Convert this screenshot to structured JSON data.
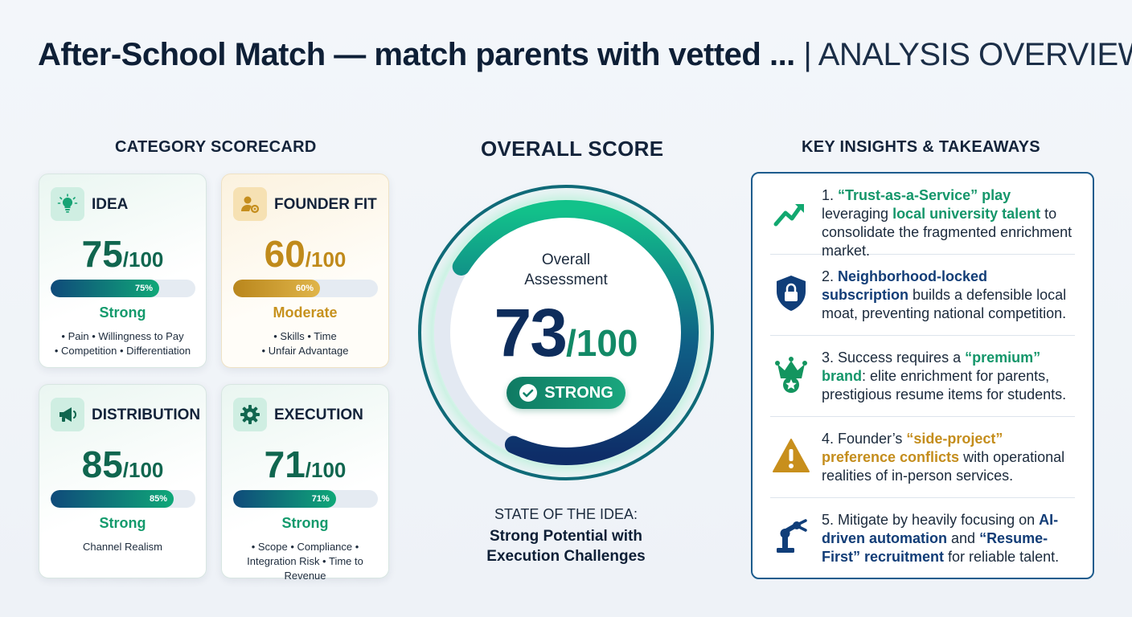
{
  "header": {
    "title": "After-School Match — match parents with vetted ...",
    "subtitle": "| ANALYSIS OVERVIEW"
  },
  "scorecard": {
    "heading": "CATEGORY SCORECARD",
    "cards": [
      {
        "name": "IDEA",
        "score": "75",
        "max": "/100",
        "pct": 75,
        "pct_label": "75%",
        "rating": "Strong",
        "tags_line1": "• Pain • Willingness to Pay",
        "tags_line2": "• Competition • Differentiation",
        "icon": "lightbulb-icon"
      },
      {
        "name": "FOUNDER FIT",
        "score": "60",
        "max": "/100",
        "pct": 60,
        "pct_label": "60%",
        "rating": "Moderate",
        "tags_line1": "• Skills • Time",
        "tags_line2": "• Unfair Advantage",
        "icon": "person-gear-icon"
      },
      {
        "name": "DISTRIBUTION",
        "score": "85",
        "max": "/100",
        "pct": 85,
        "pct_label": "85%",
        "rating": "Strong",
        "tags_line1": "Channel Realism",
        "tags_line2": "",
        "icon": "megaphone-icon"
      },
      {
        "name": "EXECUTION",
        "score": "71",
        "max": "/100",
        "pct": 71,
        "pct_label": "71%",
        "rating": "Strong",
        "tags_line1": "• Scope • Compliance •",
        "tags_line2": "Integration Risk • Time to Revenue",
        "icon": "gear-icon"
      }
    ]
  },
  "overall": {
    "heading": "OVERALL SCORE",
    "label_line1": "Overall",
    "label_line2": "Assessment",
    "score": "73",
    "max": "/100",
    "pct": 73,
    "badge": "STRONG",
    "state_label": "STATE OF THE IDEA:",
    "state_line1": "Strong Potential with",
    "state_line2": "Execution Challenges"
  },
  "insights": {
    "heading": "KEY INSIGHTS & TAKEAWAYS",
    "items": [
      {
        "icon": "trend-up-arrow-icon"
      },
      {
        "icon": "shield-lock-icon"
      },
      {
        "icon": "crown-star-icon"
      },
      {
        "icon": "warning-icon"
      },
      {
        "icon": "robot-arm-icon"
      }
    ],
    "i1": {
      "a": "1. ",
      "b": "“Trust-as-a-Service” play",
      "c": " leveraging ",
      "d": "local university talent",
      "e": " to consolidate the fragmented enrichment market."
    },
    "i2": {
      "a": "2. ",
      "b": "Neighborhood-locked subscription",
      "c": " builds a defensible local moat, preventing national competition."
    },
    "i3": {
      "a": "3. Success requires a ",
      "b": "“premium” brand",
      "c": ": elite enrichment for parents, prestigious resume items for students."
    },
    "i4": {
      "a": "4. Founder’s ",
      "b": "“side-project” preference conflicts",
      "c": " with operational realities of in-person services."
    },
    "i5": {
      "a": "5. Mitigate by heavily focusing on ",
      "b": "AI-driven automation",
      "c": " and ",
      "d": "“Resume-First”",
      "e": " recruitment",
      "f": " for reliable talent."
    }
  },
  "colors": {
    "green": "#14966a",
    "navy": "#0e2d5c",
    "gold": "#c48d1c"
  }
}
